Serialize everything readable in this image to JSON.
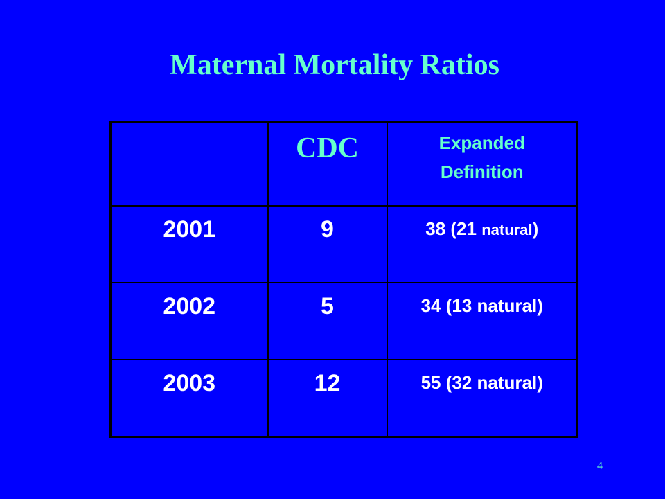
{
  "slide": {
    "title": "Maternal Mortality Ratios",
    "page_number": "4",
    "colors": {
      "background": "#0000ff",
      "heading": "#66ffcc",
      "body_text": "#ffffff",
      "table_border": "#000000"
    }
  },
  "table": {
    "headers": {
      "year": "",
      "cdc": "CDC",
      "expanded_line1": "Expanded",
      "expanded_line2": "Definition"
    },
    "rows": [
      {
        "year": "2001",
        "cdc": "9",
        "expanded": "38 (21 ",
        "expanded_small": "natural",
        "expanded_tail": ")"
      },
      {
        "year": "2002",
        "cdc": "5",
        "expanded": "34 (13 natural)",
        "expanded_small": "",
        "expanded_tail": ""
      },
      {
        "year": "2003",
        "cdc": "12",
        "expanded": "55 (32 natural)",
        "expanded_small": "",
        "expanded_tail": ""
      }
    ]
  }
}
